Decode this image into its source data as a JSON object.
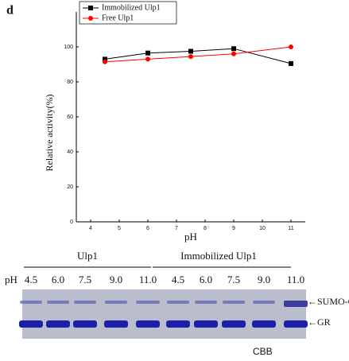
{
  "panel_label": "d",
  "chart_data": {
    "type": "line",
    "x_label": "pH",
    "y_label": "Relative activity(%)",
    "x": [
      4.5,
      6,
      7.5,
      9,
      11
    ],
    "series": [
      {
        "name": "Immobilized Ulp1",
        "color": "#000000",
        "marker": "square",
        "values": [
          93,
          96.5,
          97.5,
          99,
          90.5
        ]
      },
      {
        "name": "Free Ulp1",
        "color": "#ff0000",
        "marker": "circle",
        "values": [
          91.5,
          93,
          94.5,
          96,
          100
        ]
      }
    ],
    "xlim": [
      3.5,
      11.5
    ],
    "xticks": [
      4,
      5,
      6,
      7,
      8,
      9,
      10,
      11
    ],
    "ylim": [
      0,
      120
    ],
    "yticks": [
      0,
      20,
      40,
      60,
      80,
      100
    ],
    "legend": "upper left"
  },
  "gel": {
    "groups": [
      "Ulp1",
      "Immobilized Ulp1"
    ],
    "ph_label": "pH",
    "lanes": [
      "4.5",
      "6.0",
      "7.5",
      "9.0",
      "11.0",
      "4.5",
      "6.0",
      "7.5",
      "9.0",
      "11.0"
    ],
    "bands": [
      "←SUMO-GR",
      "←GR"
    ],
    "stain": "CBB"
  }
}
